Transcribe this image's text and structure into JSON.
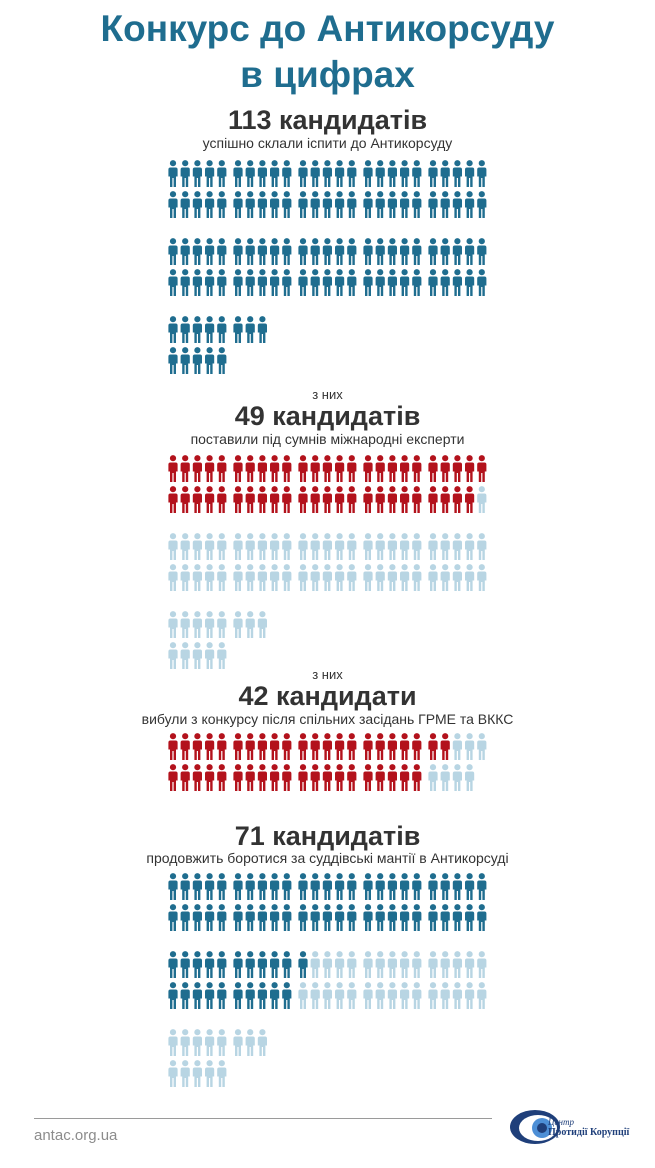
{
  "title_line1": "Конкурс до Антикорсуду",
  "title_line2": "в цифрах",
  "colors": {
    "blue": "#1f6d8f",
    "red": "#b3121c",
    "light_blue": "#b8d5e3",
    "dark_text": "#333333"
  },
  "sections": [
    {
      "prefix": "",
      "headline": "113 кандидатів",
      "subtitle": "успішно склали іспити до Антикорсуду",
      "total_figures": 113,
      "highlighted": 113,
      "highlight_color": "blue",
      "rest_color": "light_blue"
    },
    {
      "prefix": "з них",
      "headline": "49 кандидатів",
      "subtitle": "поставили під сумнів міжнародні експерти",
      "total_figures": 113,
      "highlighted": 49,
      "highlight_color": "red",
      "rest_color": "light_blue"
    },
    {
      "prefix": "з них",
      "headline": "42  кандидати",
      "subtitle": "вибули з конкурсу після спільних засідань ГРМЕ та ВККС",
      "total_figures": 49,
      "highlighted": 42,
      "highlight_color": "red",
      "rest_color": "light_blue"
    },
    {
      "prefix": "",
      "headline": "71 кандидатів",
      "subtitle": "продовжить боротися за суддівські мантії в Антикорсуді",
      "total_figures": 113,
      "highlighted": 71,
      "highlight_color": "blue",
      "rest_color": "light_blue"
    }
  ],
  "footer": {
    "site": "antac.org.ua",
    "logo_line1": "Центр",
    "logo_line2": "Протидії Корупції"
  }
}
